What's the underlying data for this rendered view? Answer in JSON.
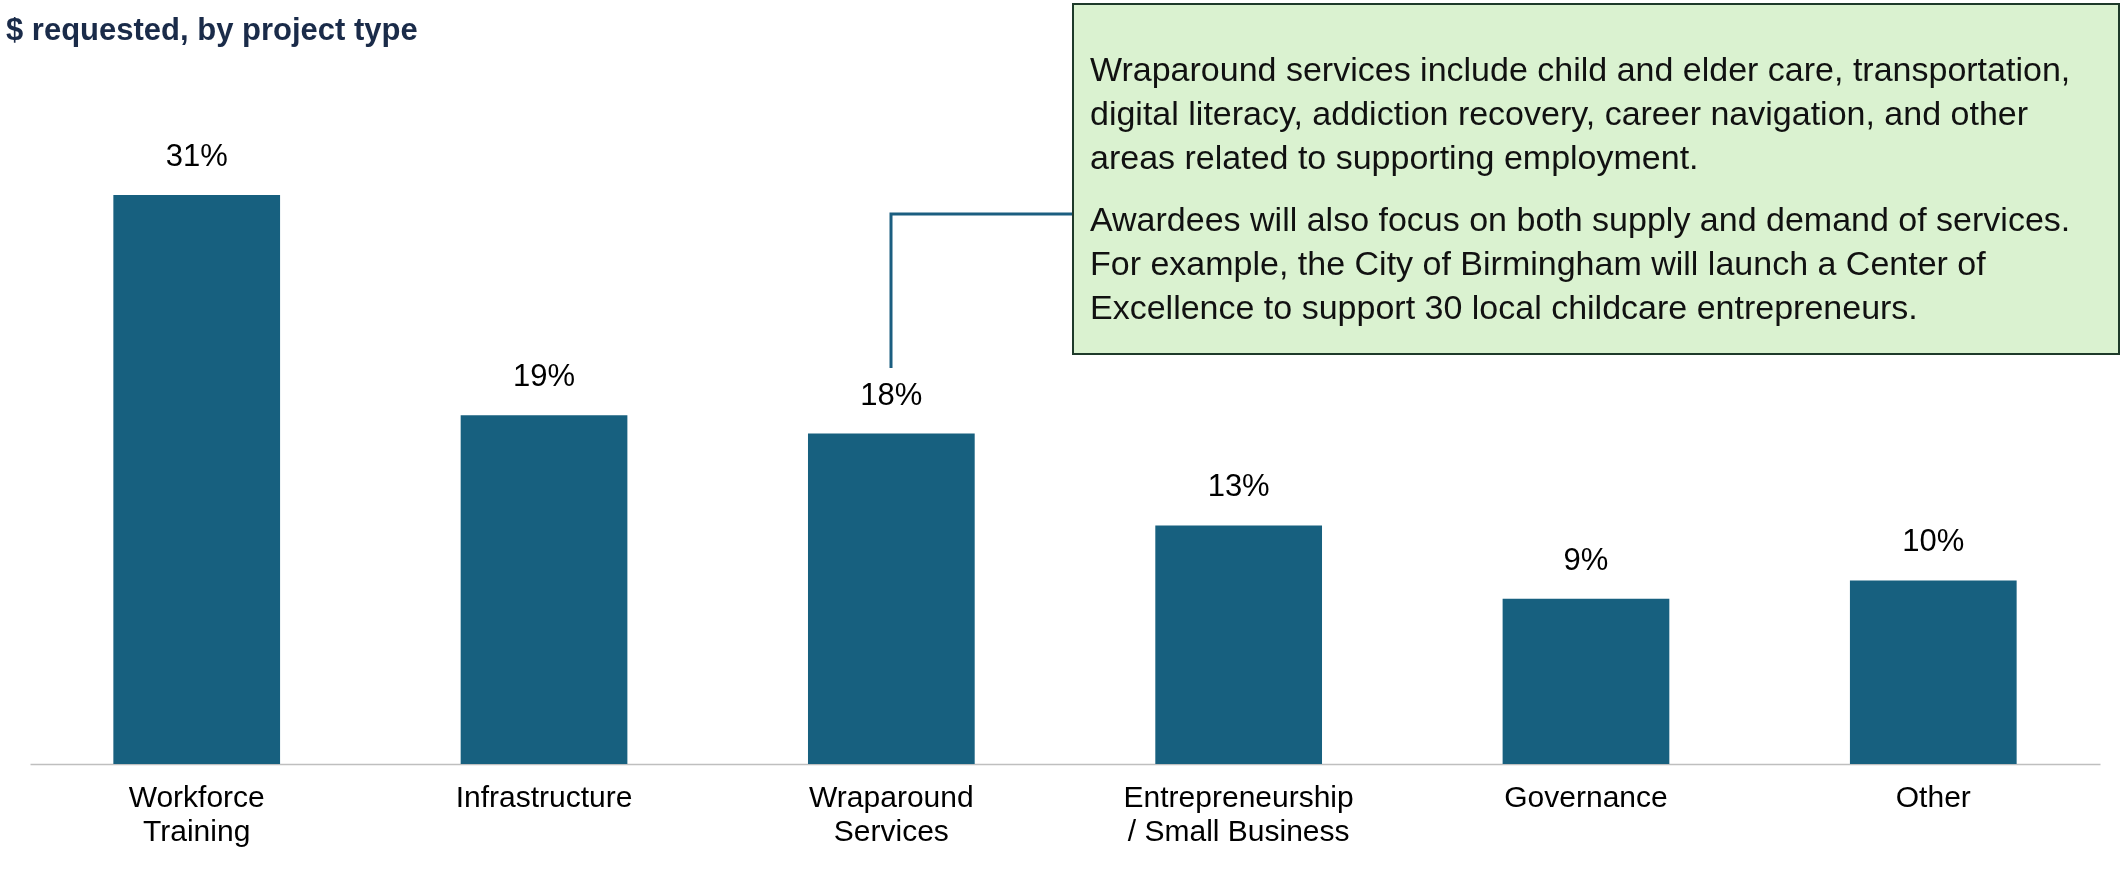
{
  "chart_data": {
    "type": "bar",
    "title": "$ requested, by project type",
    "categories": [
      "Workforce Training",
      "Infrastructure",
      "Wraparound Services",
      "Entrepreneurship / Small Business",
      "Governance",
      "Other"
    ],
    "values": [
      31,
      19,
      18,
      13,
      9,
      10
    ],
    "value_labels": [
      "31%",
      "19%",
      "18%",
      "13%",
      "9%",
      "10%"
    ],
    "color": "#17607f",
    "annotations": [
      "Wraparound services include child and elder care, transportation, digital literacy, addiction recovery, career navigation, and other areas related to supporting employment.",
      "Awardees will also focus on both supply and demand of services. For example, the City of Birmingham will launch a Center of Excellence to support 30 local childcare entrepreneurs."
    ]
  }
}
